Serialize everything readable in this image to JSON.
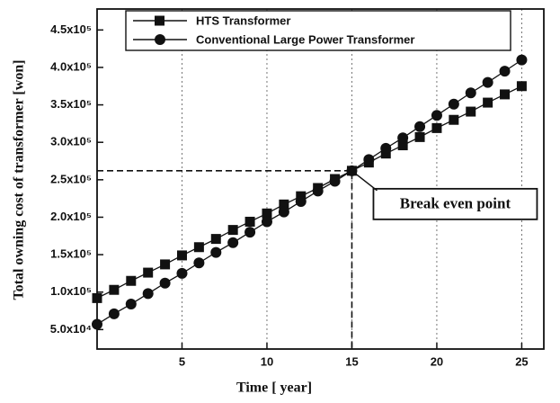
{
  "chart_data": {
    "type": "line",
    "xlabel": "Time [ year]",
    "ylabel": "Total owning cost of transformer [won]",
    "x": [
      0,
      1,
      2,
      3,
      4,
      5,
      6,
      7,
      8,
      9,
      10,
      11,
      12,
      13,
      14,
      15,
      16,
      17,
      18,
      19,
      20,
      21,
      22,
      23,
      24,
      25
    ],
    "series": [
      {
        "name": "HTS Transformer",
        "color": "#111111",
        "marker": "square",
        "values": [
          92000,
          103000,
          115000,
          126000,
          137000,
          149000,
          160000,
          171000,
          183000,
          194000,
          205000,
          217000,
          228000,
          239000,
          251000,
          262000,
          273000,
          285000,
          296000,
          307000,
          319000,
          330000,
          341000,
          353000,
          364000,
          375000
        ]
      },
      {
        "name": "Conventional Large Power Transformer",
        "color": "#111111",
        "marker": "circle",
        "values": [
          57000,
          71000,
          84000,
          98000,
          112000,
          125000,
          139000,
          153000,
          166000,
          180000,
          194000,
          207000,
          221000,
          235000,
          248000,
          262000,
          277000,
          292000,
          306000,
          321000,
          336000,
          351000,
          366000,
          380000,
          395000,
          410000
        ]
      }
    ],
    "xlim": [
      0,
      26.3
    ],
    "ylim": [
      24000,
      478000
    ],
    "xticks": [
      5,
      10,
      15,
      20,
      25
    ],
    "yticks": [
      {
        "value": 50000,
        "label": "5.0x10⁴"
      },
      {
        "value": 100000,
        "label": "1.0x10⁵"
      },
      {
        "value": 150000,
        "label": "1.5x10⁵"
      },
      {
        "value": 200000,
        "label": "2.0x10⁵"
      },
      {
        "value": 250000,
        "label": "2.5x10⁵"
      },
      {
        "value": 300000,
        "label": "3.0x10⁵"
      },
      {
        "value": 350000,
        "label": "3.5x10⁵"
      },
      {
        "value": 400000,
        "label": "4.0x10⁵"
      },
      {
        "value": 450000,
        "label": "4.5x10⁵"
      }
    ],
    "grid": "x",
    "legend": "upper left",
    "annotations": [
      {
        "text": "Break even point",
        "x": 15,
        "y": 262000
      }
    ]
  }
}
